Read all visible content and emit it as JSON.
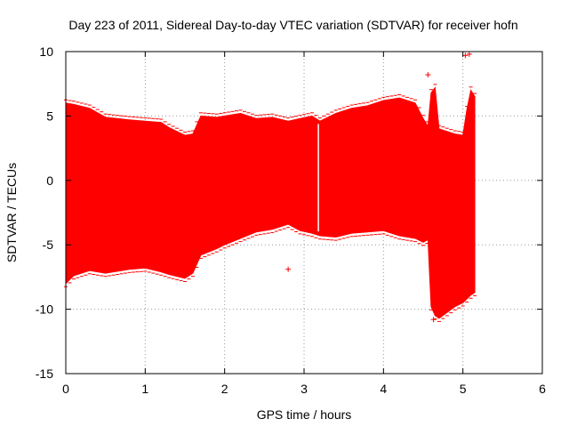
{
  "chart_data": {
    "type": "scatter",
    "title": "Day 223 of 2011, Sidereal Day-to-day VTEC variation (SDTVAR) for receiver hofn",
    "xlabel": "GPS time / hours",
    "ylabel": "SDTVAR / TECUs",
    "xlim": [
      0,
      6
    ],
    "ylim": [
      -15,
      10
    ],
    "xticks": [
      0,
      1,
      2,
      3,
      4,
      5,
      6
    ],
    "yticks": [
      -15,
      -10,
      -5,
      0,
      5,
      10
    ],
    "grid": true,
    "series_color": "#ff0000",
    "envelope": {
      "x": [
        0.0,
        0.1,
        0.3,
        0.5,
        0.8,
        1.0,
        1.2,
        1.3,
        1.5,
        1.6,
        1.7,
        1.9,
        2.0,
        2.2,
        2.4,
        2.6,
        2.8,
        2.95,
        3.1,
        3.2,
        3.4,
        3.6,
        3.8,
        4.0,
        4.2,
        4.4,
        4.5,
        4.56,
        4.6,
        4.65,
        4.7,
        4.9,
        5.0,
        5.05,
        5.1,
        5.15
      ],
      "upper": [
        6.0,
        5.9,
        5.6,
        4.9,
        4.7,
        4.6,
        4.5,
        4.1,
        3.5,
        3.6,
        5.0,
        4.9,
        5.0,
        5.2,
        4.8,
        4.9,
        4.6,
        4.8,
        5.0,
        4.6,
        5.2,
        5.6,
        5.8,
        6.2,
        6.4,
        6.0,
        4.8,
        4.2,
        6.8,
        7.2,
        4.0,
        3.6,
        3.5,
        5.5,
        7.0,
        6.5
      ],
      "lower": [
        -8.0,
        -7.4,
        -7.0,
        -7.2,
        -6.9,
        -6.8,
        -7.1,
        -7.3,
        -7.6,
        -7.2,
        -5.8,
        -5.3,
        -5.0,
        -4.5,
        -4.0,
        -3.8,
        -3.4,
        -3.9,
        -4.1,
        -4.3,
        -4.4,
        -4.1,
        -4.0,
        -3.9,
        -4.3,
        -4.5,
        -4.8,
        -4.6,
        -9.8,
        -10.5,
        -10.7,
        -9.8,
        -9.5,
        -9.2,
        -8.9,
        -8.7
      ]
    },
    "outliers": [
      {
        "x": 2.8,
        "y": -6.9
      },
      {
        "x": 4.56,
        "y": 8.2
      },
      {
        "x": 4.63,
        "y": -10.8
      },
      {
        "x": 5.03,
        "y": 9.7
      },
      {
        "x": 5.08,
        "y": 9.8
      }
    ],
    "gaps": [
      3.18
    ]
  }
}
